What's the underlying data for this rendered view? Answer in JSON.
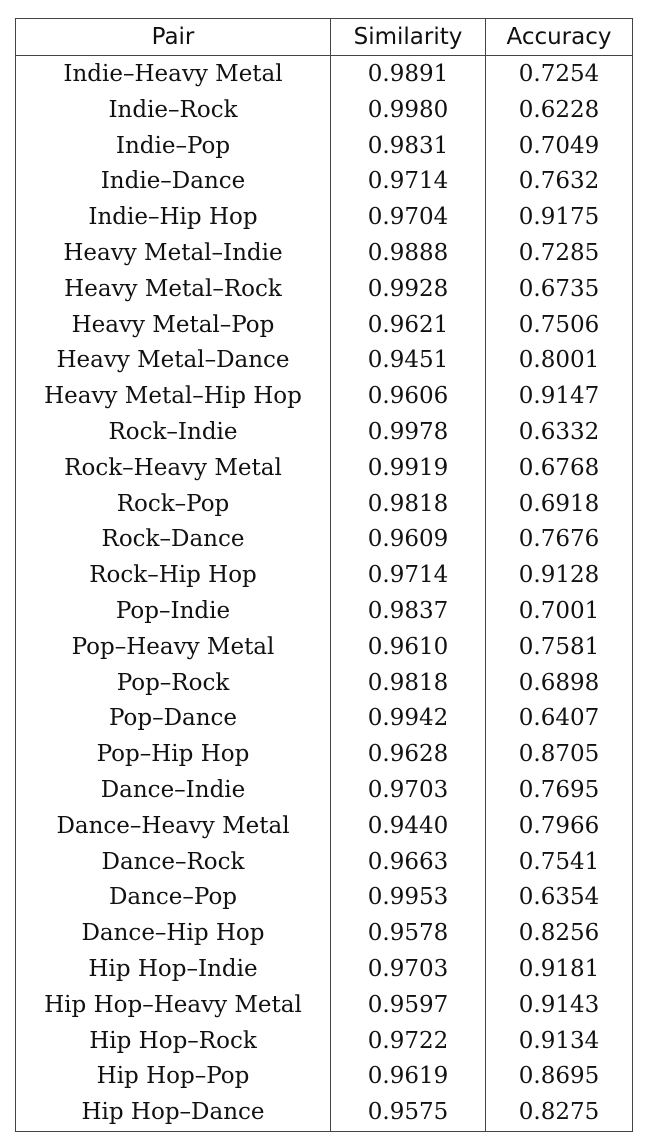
{
  "table": {
    "headers": [
      "Pair",
      "Similarity",
      "Accuracy"
    ],
    "rows": [
      {
        "pair": "Indie–Heavy Metal",
        "similarity": "0.9891",
        "accuracy": "0.7254"
      },
      {
        "pair": "Indie–Rock",
        "similarity": "0.9980",
        "accuracy": "0.6228"
      },
      {
        "pair": "Indie–Pop",
        "similarity": "0.9831",
        "accuracy": "0.7049"
      },
      {
        "pair": "Indie–Dance",
        "similarity": "0.9714",
        "accuracy": "0.7632"
      },
      {
        "pair": "Indie–Hip Hop",
        "similarity": "0.9704",
        "accuracy": "0.9175"
      },
      {
        "pair": "Heavy Metal–Indie",
        "similarity": "0.9888",
        "accuracy": "0.7285"
      },
      {
        "pair": "Heavy Metal–Rock",
        "similarity": "0.9928",
        "accuracy": "0.6735"
      },
      {
        "pair": "Heavy Metal–Pop",
        "similarity": "0.9621",
        "accuracy": "0.7506"
      },
      {
        "pair": "Heavy Metal–Dance",
        "similarity": "0.9451",
        "accuracy": "0.8001"
      },
      {
        "pair": "Heavy Metal–Hip Hop",
        "similarity": "0.9606",
        "accuracy": "0.9147"
      },
      {
        "pair": "Rock–Indie",
        "similarity": "0.9978",
        "accuracy": "0.6332"
      },
      {
        "pair": "Rock–Heavy Metal",
        "similarity": "0.9919",
        "accuracy": "0.6768"
      },
      {
        "pair": "Rock–Pop",
        "similarity": "0.9818",
        "accuracy": "0.6918"
      },
      {
        "pair": "Rock–Dance",
        "similarity": "0.9609",
        "accuracy": "0.7676"
      },
      {
        "pair": "Rock–Hip Hop",
        "similarity": "0.9714",
        "accuracy": "0.9128"
      },
      {
        "pair": "Pop–Indie",
        "similarity": "0.9837",
        "accuracy": "0.7001"
      },
      {
        "pair": "Pop–Heavy Metal",
        "similarity": "0.9610",
        "accuracy": "0.7581"
      },
      {
        "pair": "Pop–Rock",
        "similarity": "0.9818",
        "accuracy": "0.6898"
      },
      {
        "pair": "Pop–Dance",
        "similarity": "0.9942",
        "accuracy": "0.6407"
      },
      {
        "pair": "Pop–Hip Hop",
        "similarity": "0.9628",
        "accuracy": "0.8705"
      },
      {
        "pair": "Dance–Indie",
        "similarity": "0.9703",
        "accuracy": "0.7695"
      },
      {
        "pair": "Dance–Heavy Metal",
        "similarity": "0.9440",
        "accuracy": "0.7966"
      },
      {
        "pair": "Dance–Rock",
        "similarity": "0.9663",
        "accuracy": "0.7541"
      },
      {
        "pair": "Dance–Pop",
        "similarity": "0.9953",
        "accuracy": "0.6354"
      },
      {
        "pair": "Dance–Hip Hop",
        "similarity": "0.9578",
        "accuracy": "0.8256"
      },
      {
        "pair": "Hip Hop–Indie",
        "similarity": "0.9703",
        "accuracy": "0.9181"
      },
      {
        "pair": "Hip Hop–Heavy Metal",
        "similarity": "0.9597",
        "accuracy": "0.9143"
      },
      {
        "pair": "Hip Hop–Rock",
        "similarity": "0.9722",
        "accuracy": "0.9134"
      },
      {
        "pair": "Hip Hop–Pop",
        "similarity": "0.9619",
        "accuracy": "0.8695"
      },
      {
        "pair": "Hip Hop–Dance",
        "similarity": "0.9575",
        "accuracy": "0.8275"
      }
    ]
  }
}
